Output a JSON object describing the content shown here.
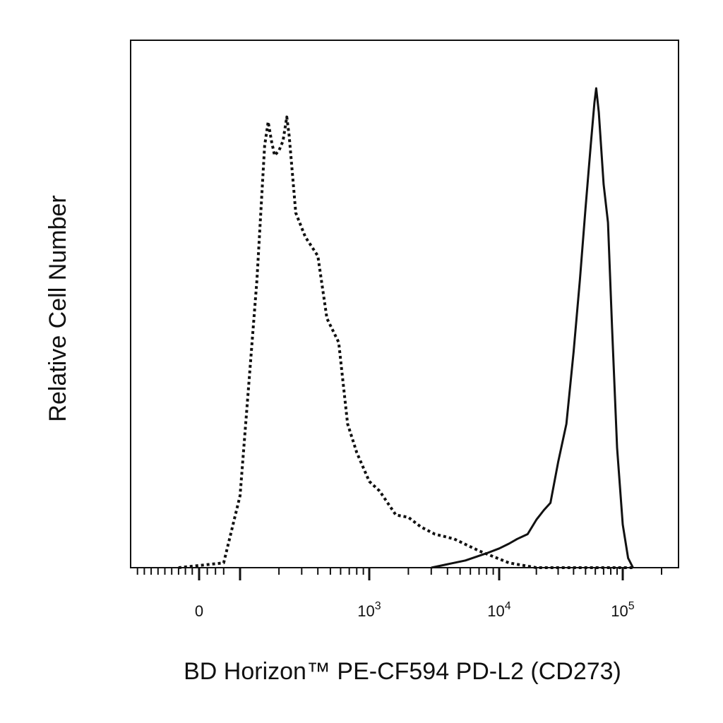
{
  "chart_data": {
    "type": "line",
    "title": "",
    "xlabel": "BD Horizon™ PE-CF594 PD-L2 (CD273)",
    "ylabel": "Relative Cell Number",
    "x_scale": "biexponential",
    "xlim": [
      -200,
      200000
    ],
    "ylim": [
      0,
      1
    ],
    "grid": false,
    "legend": "none",
    "x_ticks": [
      {
        "value": 0,
        "label": "0"
      },
      {
        "value": 1000,
        "base": "10",
        "exp": "3"
      },
      {
        "value": 10000,
        "base": "10",
        "exp": "4"
      },
      {
        "value": 100000,
        "base": "10",
        "exp": "5"
      }
    ],
    "series": [
      {
        "style": "dotted",
        "color": "#111111",
        "points": [
          [
            -60,
            0
          ],
          [
            60,
            0.01
          ],
          [
            100,
            0.15
          ],
          [
            135,
            0.6
          ],
          [
            155,
            0.88
          ],
          [
            165,
            0.93
          ],
          [
            175,
            0.89
          ],
          [
            185,
            0.86
          ],
          [
            200,
            0.87
          ],
          [
            215,
            0.89
          ],
          [
            230,
            0.94
          ],
          [
            240,
            0.9
          ],
          [
            270,
            0.74
          ],
          [
            320,
            0.69
          ],
          [
            400,
            0.65
          ],
          [
            470,
            0.52
          ],
          [
            580,
            0.47
          ],
          [
            680,
            0.3
          ],
          [
            800,
            0.24
          ],
          [
            1000,
            0.18
          ],
          [
            1200,
            0.16
          ],
          [
            1600,
            0.11
          ],
          [
            2000,
            0.105
          ],
          [
            2500,
            0.085
          ],
          [
            3200,
            0.07
          ],
          [
            4500,
            0.06
          ],
          [
            7000,
            0.035
          ],
          [
            12000,
            0.01
          ],
          [
            20000,
            0.0
          ],
          [
            120000,
            0.0
          ]
        ]
      },
      {
        "style": "solid",
        "color": "#111111",
        "points": [
          [
            3000,
            0.0
          ],
          [
            5500,
            0.015
          ],
          [
            8000,
            0.03
          ],
          [
            10000,
            0.04
          ],
          [
            12000,
            0.05
          ],
          [
            14000,
            0.06
          ],
          [
            17000,
            0.07
          ],
          [
            20000,
            0.1
          ],
          [
            23000,
            0.12
          ],
          [
            26000,
            0.135
          ],
          [
            30000,
            0.22
          ],
          [
            35000,
            0.3
          ],
          [
            40000,
            0.45
          ],
          [
            45000,
            0.6
          ],
          [
            50000,
            0.75
          ],
          [
            55000,
            0.88
          ],
          [
            59000,
            0.97
          ],
          [
            61000,
            1.0
          ],
          [
            64000,
            0.95
          ],
          [
            70000,
            0.8
          ],
          [
            76000,
            0.72
          ],
          [
            82000,
            0.5
          ],
          [
            90000,
            0.25
          ],
          [
            100000,
            0.09
          ],
          [
            110000,
            0.02
          ],
          [
            120000,
            0.0
          ]
        ]
      }
    ]
  }
}
